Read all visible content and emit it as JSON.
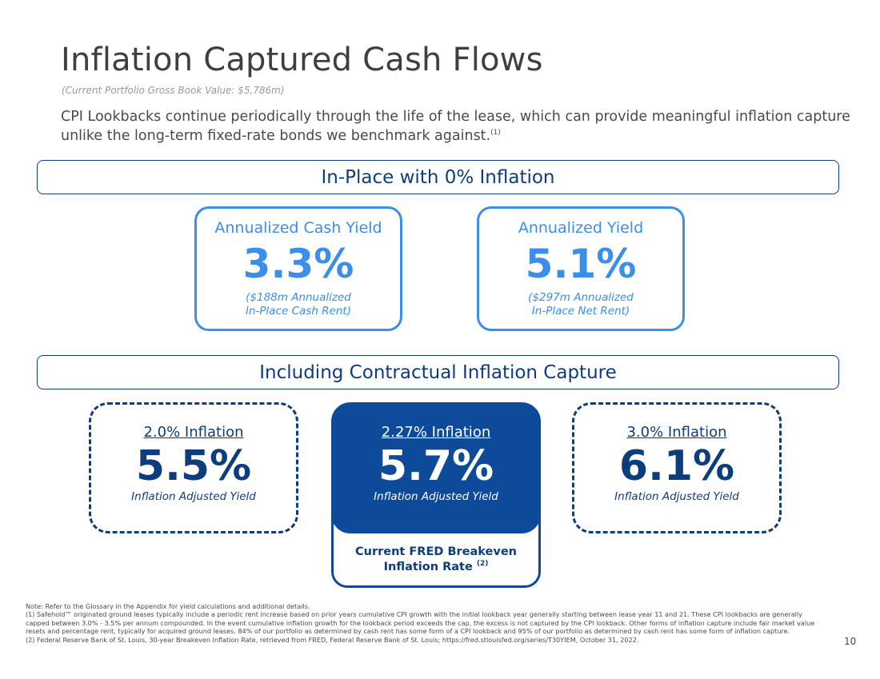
{
  "header": {
    "title": "Inflation Captured Cash Flows",
    "subtitle": "(Current Portfolio Gross Book Value: $5,786m)",
    "intro_text": "CPI Lookbacks continue periodically through the life of the lease, which can provide meaningful inflation capture unlike the long-term fixed-rate bonds we benchmark against.",
    "intro_footnote_ref": "(1)"
  },
  "in_place": {
    "banner": "In-Place with 0% Inflation",
    "cards": [
      {
        "label": "Annualized Cash Yield",
        "value": "3.3%",
        "note_line1": "($188m Annualized",
        "note_line2": "In-Place Cash Rent)"
      },
      {
        "label": "Annualized Yield",
        "value": "5.1%",
        "note_line1": "($297m Annualized",
        "note_line2": "In-Place Net Rent)"
      }
    ]
  },
  "inflation_capture": {
    "banner": "Including Contractual Inflation Capture",
    "cards": [
      {
        "label": "2.0% Inflation",
        "value": "5.5%",
        "sub": "Inflation Adjusted Yield"
      },
      {
        "label": "2.27% Inflation",
        "value": "5.7%",
        "sub": "Inflation Adjusted Yield"
      },
      {
        "label": "3.0% Inflation",
        "value": "6.1%",
        "sub": "Inflation Adjusted Yield"
      }
    ],
    "fred_line1": "Current FRED Breakeven",
    "fred_line2": "Inflation Rate",
    "fred_footnote_ref": "(2)"
  },
  "footnotes": {
    "note": "Note: Refer to the Glossary in the Appendix for yield calculations and additional details.",
    "fn1": "(1) Safehold™ originated ground leases typically include a periodic rent increase based on prior years cumulative CPI growth with the initial lookback year generally starting between lease year 11 and 21. These CPI lookbacks are generally capped between 3.0% - 3.5% per annum compounded. In the event cumulative inflation growth for the lookback period exceeds the cap, the excess is not captured by the CPI lookback. Other forms of inflation capture include fair market value resets and percentage rent, typically for acquired ground leases. 84% of our portfolio as determined by cash rent has some form of a CPI lookback and 95% of our portfolio as determined by cash rent has some form of inflation capture.",
    "fn2": "(2) Federal Reserve Bank of St. Louis, 30-year Breakeven Inflation Rate, retrieved from FRED, Federal Reserve Bank of St. Louis; https://fred.stlouisfed.org/series/T30YIEM, October 31, 2022."
  },
  "page_number": "10",
  "colors": {
    "navy": "#0d3d7c",
    "accent_blue": "#3b8eea",
    "filled_card": "#0d4a9a"
  }
}
